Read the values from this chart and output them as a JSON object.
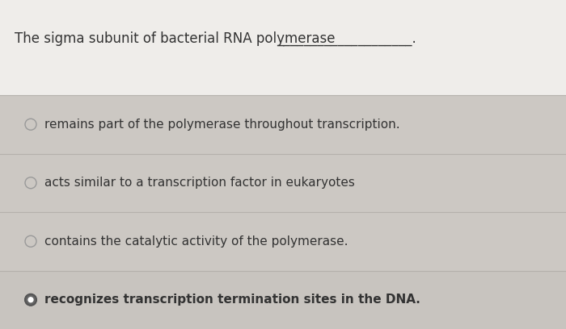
{
  "title": "The sigma subunit of bacterial RNA polymerase",
  "dash_line": "____________________.",
  "bg_color": "#d4d0cb",
  "top_bg_color": "#efedea",
  "options": [
    {
      "text": "remains part of the polymerase throughout transcription.",
      "selected": false,
      "bold": false
    },
    {
      "text": "acts similar to a transcription factor in eukaryotes",
      "selected": false,
      "bold": false
    },
    {
      "text": "contains the catalytic activity of the polymerase.",
      "selected": false,
      "bold": false
    },
    {
      "text": "recognizes transcription termination sites in the DNA.",
      "selected": true,
      "bold": true
    }
  ],
  "option_bg_colors": [
    "#ccc8c3",
    "#ccc8c3",
    "#ccc8c3",
    "#c8c4bf"
  ],
  "divider_color": "#b5b1ac",
  "text_color": "#333333",
  "circle_color": "#999999",
  "selected_circle_fill": "#666666",
  "selected_circle_edge": "#555555",
  "font_size": 11,
  "title_font_size": 12
}
